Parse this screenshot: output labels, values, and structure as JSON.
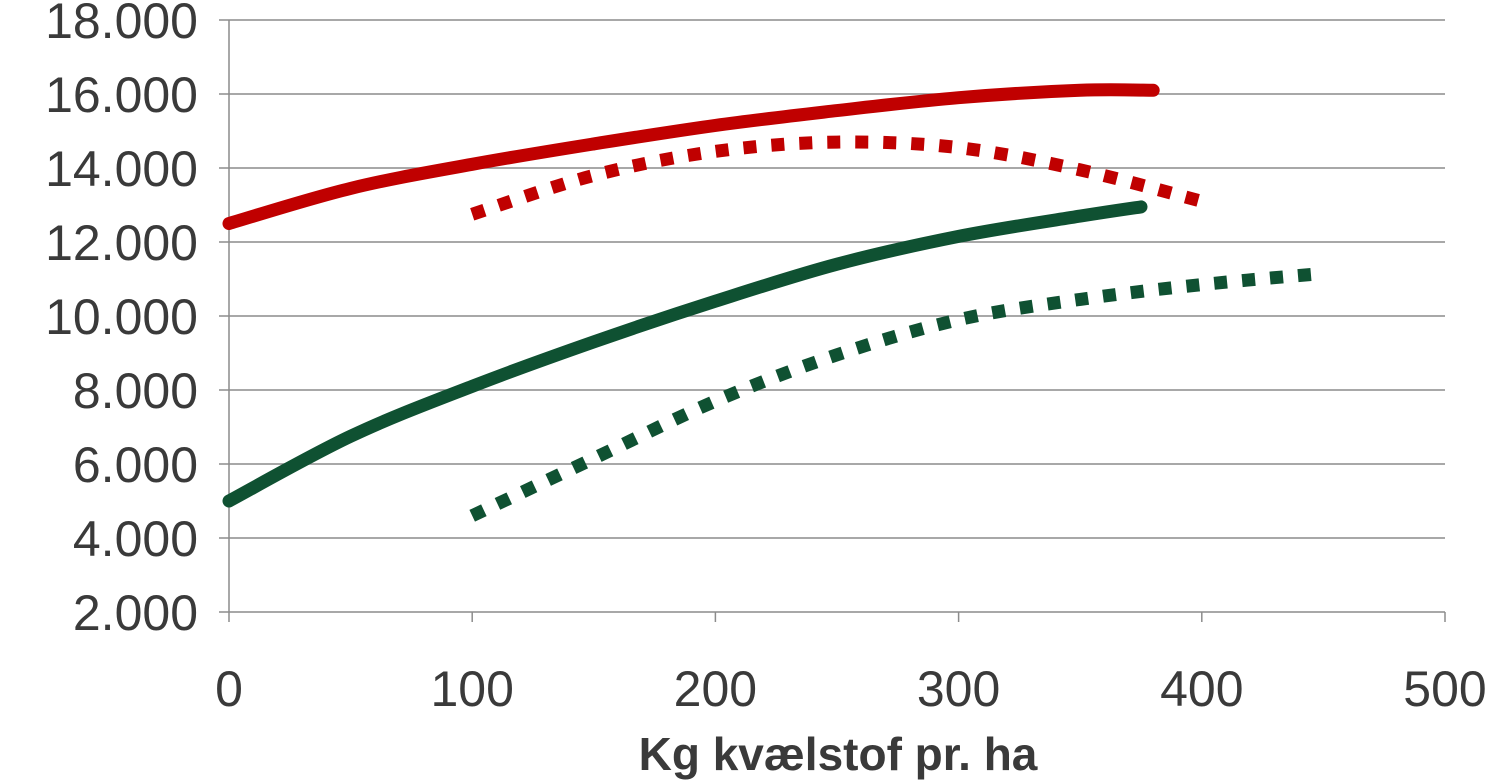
{
  "chart_data": {
    "type": "line",
    "title": "",
    "xlabel": "Kg kvælstof pr. ha",
    "ylabel": "",
    "xlim": [
      0,
      500
    ],
    "ylim": [
      2000,
      18000
    ],
    "x_ticks": [
      0,
      100,
      200,
      300,
      400,
      500
    ],
    "x_tick_labels": [
      "0",
      "100",
      "200",
      "300",
      "400",
      "500"
    ],
    "y_ticks": [
      2000,
      4000,
      6000,
      8000,
      10000,
      12000,
      14000,
      16000,
      18000
    ],
    "y_tick_labels": [
      "2.000",
      "4.000",
      "6.000",
      "8.000",
      "10.000",
      "12.000",
      "14.000",
      "16.000",
      "18.000"
    ],
    "grid": "horizontal",
    "legend": "none",
    "series": [
      {
        "color": "#c00000",
        "style": "solid",
        "points": [
          [
            0,
            12500
          ],
          [
            50,
            13450
          ],
          [
            100,
            14100
          ],
          [
            150,
            14650
          ],
          [
            200,
            15150
          ],
          [
            250,
            15550
          ],
          [
            300,
            15900
          ],
          [
            350,
            16100
          ],
          [
            380,
            16100
          ]
        ]
      },
      {
        "color": "#c00000",
        "style": "dotted",
        "points": [
          [
            100,
            12750
          ],
          [
            150,
            13800
          ],
          [
            200,
            14450
          ],
          [
            250,
            14700
          ],
          [
            300,
            14550
          ],
          [
            350,
            13950
          ],
          [
            400,
            13100
          ]
        ]
      },
      {
        "color": "#0f5132",
        "style": "solid",
        "points": [
          [
            0,
            5000
          ],
          [
            50,
            6750
          ],
          [
            100,
            8100
          ],
          [
            150,
            9300
          ],
          [
            200,
            10400
          ],
          [
            250,
            11400
          ],
          [
            300,
            12150
          ],
          [
            350,
            12700
          ],
          [
            375,
            12950
          ]
        ]
      },
      {
        "color": "#0f5132",
        "style": "dotted",
        "points": [
          [
            100,
            4600
          ],
          [
            150,
            6150
          ],
          [
            200,
            7700
          ],
          [
            250,
            8950
          ],
          [
            300,
            9900
          ],
          [
            350,
            10450
          ],
          [
            400,
            10850
          ],
          [
            450,
            11150
          ]
        ]
      }
    ]
  }
}
